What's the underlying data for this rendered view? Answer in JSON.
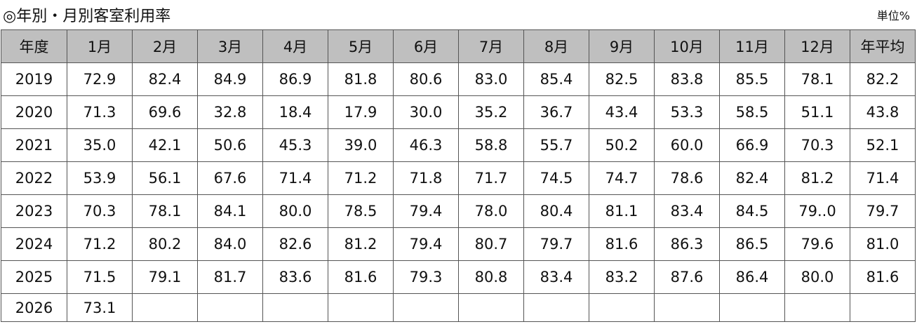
{
  "title": "◎年別・月別客室利用率",
  "unit": "単位%",
  "table": {
    "header": [
      "年度",
      "1月",
      "2月",
      "3月",
      "4月",
      "5月",
      "6月",
      "7月",
      "8月",
      "9月",
      "10月",
      "11月",
      "12月",
      "年平均"
    ],
    "rows": [
      [
        "2019",
        "72.9",
        "82.4",
        "84.9",
        "86.9",
        "81.8",
        "80.6",
        "83.0",
        "85.4",
        "82.5",
        "83.8",
        "85.5",
        "78.1",
        "82.2"
      ],
      [
        "2020",
        "71.3",
        "69.6",
        "32.8",
        "18.4",
        "17.9",
        "30.0",
        "35.2",
        "36.7",
        "43.4",
        "53.3",
        "58.5",
        "51.1",
        "43.8"
      ],
      [
        "2021",
        "35.0",
        "42.1",
        "50.6",
        "45.3",
        "39.0",
        "46.3",
        "58.8",
        "55.7",
        "50.2",
        "60.0",
        "66.9",
        "70.3",
        "52.1"
      ],
      [
        "2022",
        "53.9",
        "56.1",
        "67.6",
        "71.4",
        "71.2",
        "71.8",
        "71.7",
        "74.5",
        "74.7",
        "78.6",
        "82.4",
        "81.2",
        "71.4"
      ],
      [
        "2023",
        "70.3",
        "78.1",
        "84.1",
        "80.0",
        "78.5",
        "79.4",
        "78.0",
        "80.4",
        "81.1",
        "83.4",
        "84.5",
        "79..0",
        "79.7"
      ],
      [
        "2024",
        "71.2",
        "80.2",
        "84.0",
        "82.6",
        "81.2",
        "79.4",
        "80.7",
        "79.7",
        "81.6",
        "86.3",
        "86.5",
        "79.6",
        "81.0"
      ],
      [
        "2025",
        "71.5",
        "79.1",
        "81.7",
        "83.6",
        "81.6",
        "79.3",
        "80.8",
        "83.4",
        "83.2",
        "87.6",
        "86.4",
        "80.0",
        "81.6"
      ],
      [
        "2026",
        "73.1"
      ]
    ]
  }
}
